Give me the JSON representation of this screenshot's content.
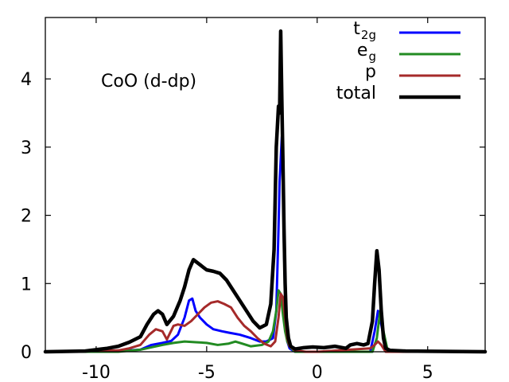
{
  "chart_data": {
    "type": "line",
    "title": "",
    "xlabel": "",
    "ylabel": "",
    "xlim": [
      -12.3,
      7.6
    ],
    "ylim": [
      0,
      4.9
    ],
    "grid": false,
    "legend_position": "top-right",
    "annotation": "CoO (d-dp)",
    "x_ticks": [
      -10,
      -5,
      0,
      5
    ],
    "y_ticks": [
      0,
      1,
      2,
      3,
      4
    ],
    "x_tick_labels": [
      "-10",
      "-5",
      "0",
      "5"
    ],
    "y_tick_labels": [
      "0",
      "1",
      "2",
      "3",
      "4"
    ],
    "series": [
      {
        "name": "t2g",
        "legend_main": "t",
        "legend_sub": "2g",
        "color": "#0000ff",
        "x": [
          -12.3,
          -9,
          -8,
          -7.5,
          -7,
          -6.6,
          -6.3,
          -6.0,
          -5.8,
          -5.65,
          -5.5,
          -5.3,
          -5.0,
          -4.7,
          -4.3,
          -4.0,
          -3.5,
          -3.0,
          -2.6,
          -2.3,
          -2.0,
          -1.85,
          -1.75,
          -1.7,
          -1.6,
          -1.55,
          -1.5,
          -1.45,
          -1.4,
          -1.35,
          -1.25,
          -1.1,
          -1.0,
          -0.5,
          0,
          2.4,
          2.6,
          2.75,
          2.9,
          3.1,
          3.3,
          7.6
        ],
        "y": [
          0,
          0.01,
          0.03,
          0.1,
          0.13,
          0.16,
          0.25,
          0.5,
          0.75,
          0.78,
          0.6,
          0.5,
          0.4,
          0.33,
          0.3,
          0.28,
          0.25,
          0.2,
          0.15,
          0.15,
          0.2,
          0.6,
          1.8,
          2.5,
          3.15,
          2.5,
          1.5,
          0.8,
          0.4,
          0.15,
          0.05,
          0.02,
          0,
          0,
          0,
          0,
          0.3,
          0.6,
          0.4,
          0.05,
          0,
          0
        ]
      },
      {
        "name": "eg",
        "legend_main": "e",
        "legend_sub": "g",
        "color": "#228b22",
        "x": [
          -12.3,
          -9,
          -8,
          -7,
          -6.5,
          -6,
          -5.5,
          -5,
          -4.5,
          -4,
          -3.7,
          -3.4,
          -3,
          -2.5,
          -2.2,
          -2,
          -1.85,
          -1.75,
          -1.65,
          -1.55,
          -1.45,
          -1.35,
          -1.25,
          -1.1,
          -1,
          0,
          2.5,
          2.7,
          2.85,
          3,
          3.2,
          7.6
        ],
        "y": [
          0,
          0,
          0.03,
          0.1,
          0.13,
          0.15,
          0.14,
          0.13,
          0.1,
          0.12,
          0.15,
          0.12,
          0.08,
          0.1,
          0.15,
          0.3,
          0.6,
          0.9,
          0.85,
          0.55,
          0.3,
          0.15,
          0.08,
          0.03,
          0,
          0,
          0,
          0.2,
          0.6,
          0.3,
          0,
          0
        ]
      },
      {
        "name": "p",
        "legend_main": "p",
        "legend_sub": "",
        "color": "#a52a2a",
        "x": [
          -12.3,
          -9,
          -8.5,
          -8,
          -7.6,
          -7.3,
          -7.0,
          -6.8,
          -6.5,
          -6.3,
          -6.0,
          -5.7,
          -5.4,
          -5.1,
          -4.8,
          -4.5,
          -4.2,
          -3.9,
          -3.6,
          -3.3,
          -3.0,
          -2.7,
          -2.4,
          -2.1,
          -1.9,
          -1.75,
          -1.65,
          -1.55,
          -1.45,
          -1.35,
          -1.25,
          -1.0,
          -0.5,
          0,
          2.4,
          2.6,
          2.75,
          2.9,
          3.1,
          7.6
        ],
        "y": [
          0,
          0.02,
          0.05,
          0.1,
          0.25,
          0.33,
          0.3,
          0.18,
          0.38,
          0.4,
          0.38,
          0.45,
          0.55,
          0.65,
          0.72,
          0.74,
          0.7,
          0.65,
          0.5,
          0.38,
          0.3,
          0.2,
          0.12,
          0.08,
          0.15,
          0.5,
          0.85,
          0.8,
          0.5,
          0.2,
          0.08,
          0.02,
          0,
          0,
          0.05,
          0.1,
          0.15,
          0.1,
          0,
          0
        ]
      },
      {
        "name": "total",
        "legend_main": "total",
        "legend_sub": "",
        "color": "#000000",
        "x": [
          -12.3,
          -10.5,
          -9.5,
          -9.0,
          -8.5,
          -8.0,
          -7.7,
          -7.4,
          -7.2,
          -7.0,
          -6.8,
          -6.5,
          -6.2,
          -6.0,
          -5.8,
          -5.6,
          -5.4,
          -5.2,
          -5.0,
          -4.7,
          -4.4,
          -4.1,
          -3.8,
          -3.5,
          -3.2,
          -2.9,
          -2.6,
          -2.3,
          -2.1,
          -1.95,
          -1.85,
          -1.75,
          -1.7,
          -1.65,
          -1.6,
          -1.55,
          -1.5,
          -1.45,
          -1.4,
          -1.3,
          -1.2,
          -1.0,
          -0.6,
          -0.2,
          0.3,
          0.8,
          1.3,
          1.5,
          1.8,
          2.1,
          2.3,
          2.5,
          2.6,
          2.7,
          2.8,
          2.9,
          3.0,
          3.1,
          3.3,
          4.0,
          7.6
        ],
        "y": [
          0,
          0.01,
          0.05,
          0.08,
          0.14,
          0.22,
          0.4,
          0.55,
          0.6,
          0.55,
          0.4,
          0.52,
          0.75,
          0.95,
          1.2,
          1.35,
          1.3,
          1.25,
          1.2,
          1.18,
          1.15,
          1.05,
          0.9,
          0.75,
          0.6,
          0.45,
          0.35,
          0.4,
          0.7,
          1.5,
          3.0,
          3.6,
          3.5,
          4.7,
          3.7,
          2.8,
          1.8,
          1.0,
          0.5,
          0.2,
          0.08,
          0.04,
          0.06,
          0.07,
          0.06,
          0.08,
          0.05,
          0.1,
          0.12,
          0.1,
          0.12,
          0.45,
          1.0,
          1.48,
          1.2,
          0.6,
          0.2,
          0.05,
          0.02,
          0.01,
          0
        ]
      }
    ]
  }
}
